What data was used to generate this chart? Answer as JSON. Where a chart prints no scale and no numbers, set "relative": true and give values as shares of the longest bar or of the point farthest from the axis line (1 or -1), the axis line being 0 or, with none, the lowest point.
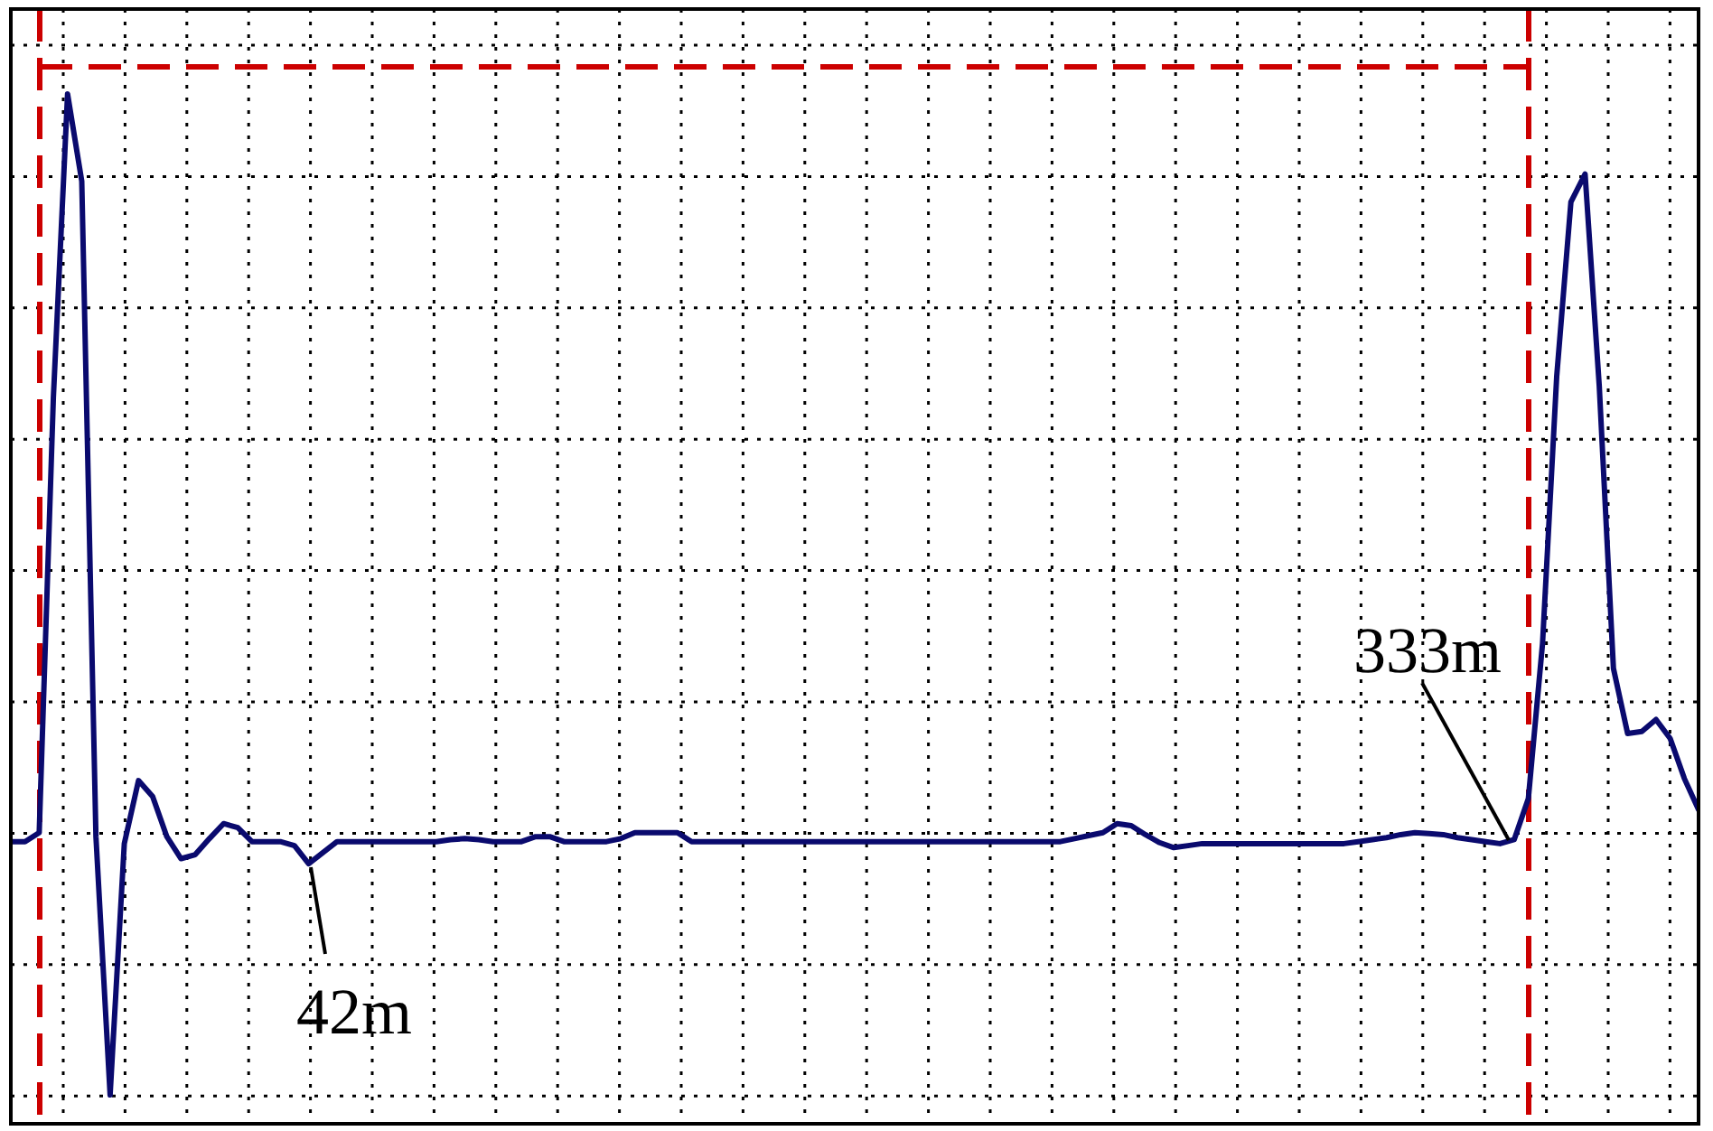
{
  "chart_data": {
    "type": "line",
    "relative": true,
    "grid": true,
    "line_style": "solid",
    "categories": [
      null,
      null,
      null,
      null,
      null,
      null,
      null,
      null,
      null,
      null,
      null,
      null,
      null,
      null,
      null,
      null,
      null,
      null,
      null,
      null,
      null,
      null,
      null,
      null,
      null,
      null,
      null,
      null,
      null,
      null,
      null,
      null,
      null,
      null,
      null,
      null,
      null,
      null,
      null,
      null,
      null,
      null,
      null,
      null,
      null,
      null,
      null,
      null,
      null,
      null,
      null,
      null,
      null,
      null,
      null,
      null,
      null,
      null,
      null,
      null,
      null,
      null,
      null,
      null,
      null,
      null,
      null,
      null,
      null,
      null,
      null,
      null,
      null,
      null,
      null,
      null,
      null,
      null,
      null,
      null,
      null,
      null,
      null,
      null,
      null,
      null,
      null,
      null,
      null,
      null,
      null,
      null,
      null,
      null,
      null,
      null,
      null,
      null,
      null,
      null,
      null,
      null,
      null,
      null,
      null,
      null,
      null,
      null,
      null,
      null,
      null,
      null,
      null,
      null,
      null,
      null,
      null,
      null,
      null,
      null
    ],
    "series": [
      {
        "color": "#0a0a6e",
        "values": [
          0.253,
          0.253,
          0.262,
          0.697,
          1,
          0.913,
          0.258,
          0,
          0.251,
          0.314,
          0.298,
          0.258,
          0.236,
          0.24,
          0.256,
          0.271,
          0.267,
          0.253,
          0.253,
          0.253,
          0.249,
          0.231,
          0.242,
          0.253,
          0.253,
          0.253,
          0.253,
          0.253,
          0.253,
          0.253,
          0.253,
          0.255,
          0.256,
          0.255,
          0.253,
          0.253,
          0.253,
          0.258,
          0.258,
          0.253,
          0.253,
          0.253,
          0.253,
          0.256,
          0.262,
          0.262,
          0.262,
          0.262,
          0.253,
          0.253,
          0.253,
          0.253,
          0.253,
          0.253,
          0.253,
          0.253,
          0.253,
          0.253,
          0.253,
          0.253,
          0.253,
          0.253,
          0.253,
          0.253,
          0.253,
          0.253,
          0.253,
          0.253,
          0.253,
          0.253,
          0.253,
          0.253,
          0.253,
          0.253,
          0.253,
          0.256,
          0.259,
          0.262,
          0.271,
          0.269,
          0.26,
          0.252,
          0.247,
          0.249,
          0.251,
          0.251,
          0.251,
          0.251,
          0.251,
          0.251,
          0.251,
          0.251,
          0.251,
          0.251,
          0.251,
          0.253,
          0.255,
          0.257,
          0.26,
          0.262,
          0.261,
          0.26,
          0.257,
          0.255,
          0.253,
          0.251,
          0.255,
          0.296,
          0.451,
          0.718,
          0.892,
          0.92,
          0.708,
          0.426,
          0.361,
          0.363,
          0.375,
          0.356,
          0.316,
          0.285
        ]
      }
    ],
    "ref_lines": [
      {
        "axis": "y",
        "value": 1.027,
        "color": "#cc0000",
        "line_style": "dashed"
      }
    ],
    "annotations": [
      "42m",
      "333m"
    ]
  }
}
